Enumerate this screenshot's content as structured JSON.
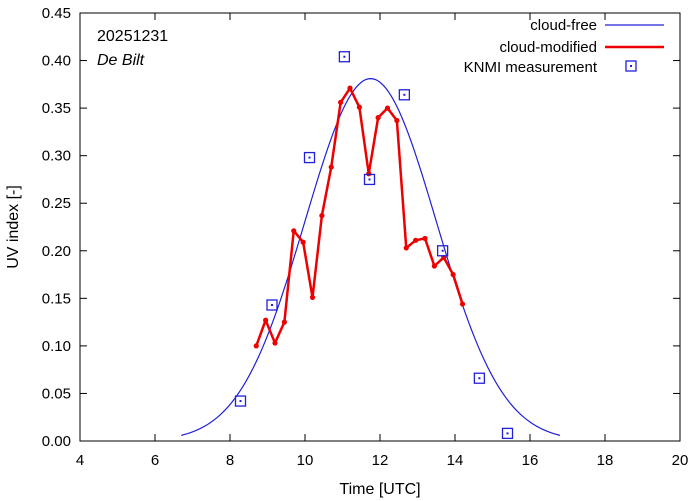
{
  "chart_data": {
    "type": "line",
    "xlabel": "Time  [UTC]",
    "ylabel": "UV index  [-]",
    "xlim": [
      4,
      20
    ],
    "ylim": [
      0,
      0.45
    ],
    "xticks": [
      4,
      6,
      8,
      10,
      12,
      14,
      16,
      18,
      20
    ],
    "yticks": [
      0.0,
      0.05,
      0.1,
      0.15,
      0.2,
      0.25,
      0.3,
      0.35,
      0.4,
      0.45
    ],
    "grid": false,
    "legend_position": "top-right",
    "annotations": {
      "date": "20251231",
      "location": "De Bilt"
    },
    "colors": {
      "cloud_free": "#2020d8",
      "cloud_modified": "#ee0000",
      "measurement": "#2020d8"
    },
    "series": [
      {
        "name": "cloud-free",
        "kind": "line",
        "peak_x": 11.75,
        "peak_y": 0.381,
        "sigma": 1.75,
        "x_start": 6.7,
        "x_end": 16.8
      },
      {
        "name": "cloud-modified",
        "kind": "line-markers",
        "x": [
          8.7,
          8.95,
          9.2,
          9.45,
          9.7,
          9.95,
          10.2,
          10.45,
          10.7,
          10.95,
          11.2,
          11.45,
          11.7,
          11.95,
          12.2,
          12.45,
          12.7,
          12.95,
          13.2,
          13.45,
          13.7,
          13.95,
          14.2
        ],
        "y": [
          0.1,
          0.127,
          0.103,
          0.125,
          0.221,
          0.209,
          0.151,
          0.237,
          0.288,
          0.356,
          0.371,
          0.351,
          0.281,
          0.34,
          0.35,
          0.337,
          0.203,
          0.211,
          0.213,
          0.184,
          0.193,
          0.175,
          0.144
        ]
      },
      {
        "name": "KNMI measurement",
        "kind": "markers",
        "x": [
          8.28,
          9.12,
          10.12,
          11.05,
          11.72,
          12.65,
          13.67,
          14.65,
          15.4
        ],
        "y": [
          0.042,
          0.143,
          0.298,
          0.404,
          0.275,
          0.364,
          0.2,
          0.066,
          0.008
        ]
      }
    ]
  }
}
